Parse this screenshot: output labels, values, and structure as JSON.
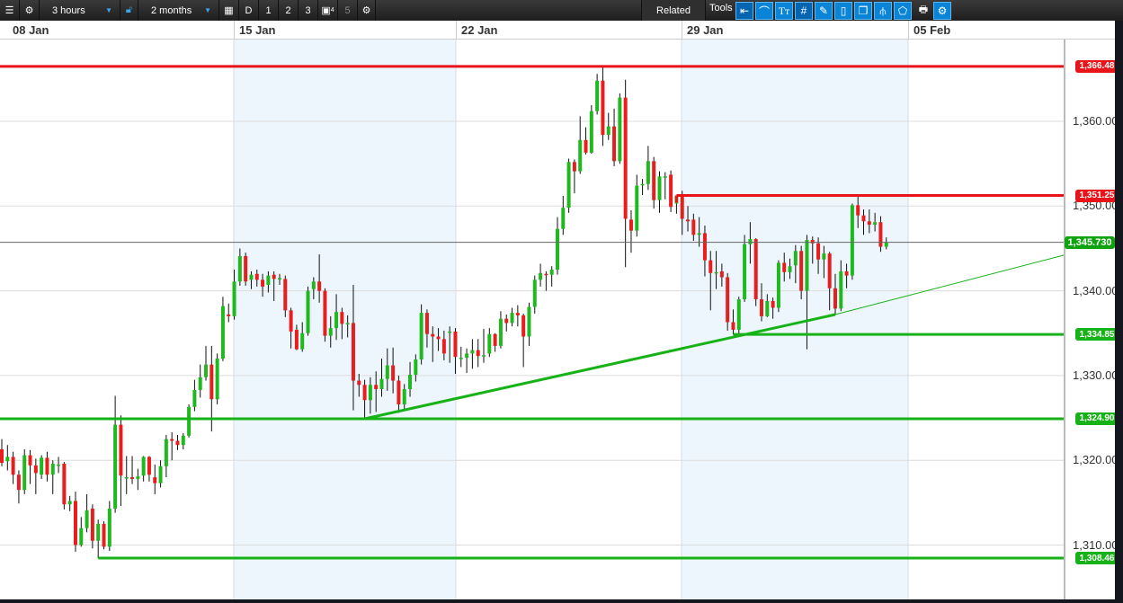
{
  "toolbar": {
    "interval": "3 hours",
    "range": "2 months",
    "d_label": "D",
    "btn1": "1",
    "btn2": "2",
    "btn3": "3",
    "btn4_badge": "4",
    "btn5": "5",
    "related": "Related",
    "tools": "Tools",
    "tool_icons": [
      "back-arrow-icon",
      "curve-icon",
      "text-icon",
      "grid-icon",
      "draw-icon",
      "candle-icon",
      "layers-icon",
      "indicator-icon",
      "label-icon"
    ],
    "print_icon": "print-icon",
    "settings_icon": "settings-icon"
  },
  "date_labels": [
    "08 Jan",
    "15 Jan",
    "22 Jan",
    "29 Jan",
    "05 Feb"
  ],
  "colors": {
    "up": "#1fb91f",
    "down": "#e81e1e",
    "resistance": "#e8141a",
    "support": "#17b217",
    "shade": "#eef6fd"
  },
  "chart_data": {
    "type": "candlestick",
    "interval": "3 hours",
    "x_tick_labels": [
      "08 Jan",
      "15 Jan",
      "22 Jan",
      "29 Jan",
      "05 Feb"
    ],
    "y_tick_labels": [
      "1,310.00",
      "1,320.00",
      "1,330.00",
      "1,340.00",
      "1,350.00",
      "1,360.00"
    ],
    "ylim": [
      1302.5,
      1367.5
    ],
    "grid": true,
    "last_price": "1,345.730",
    "candles_ohlc": [
      [
        1321.3,
        1322.5,
        1319.3,
        1319.7
      ],
      [
        1319.9,
        1321.8,
        1318.8,
        1320.4
      ],
      [
        1320.4,
        1321,
        1317.2,
        1318.3
      ],
      [
        1318.3,
        1318.8,
        1314.9,
        1316.5
      ],
      [
        1316.5,
        1321.3,
        1316,
        1320.6
      ],
      [
        1320.6,
        1321.2,
        1317.2,
        1319.4
      ],
      [
        1319.4,
        1320.2,
        1316,
        1318.5
      ],
      [
        1318.3,
        1320.6,
        1317.8,
        1320.3
      ],
      [
        1320.3,
        1321,
        1317.5,
        1318.3
      ],
      [
        1318.3,
        1320,
        1316,
        1319.6
      ],
      [
        1319.5,
        1320.4,
        1318.5,
        1319.5
      ],
      [
        1319.6,
        1319.8,
        1314.2,
        1314.8
      ],
      [
        1314.8,
        1315.8,
        1314,
        1315.2
      ],
      [
        1315.2,
        1316.3,
        1309.2,
        1310
      ],
      [
        1310,
        1313.3,
        1309.8,
        1312
      ],
      [
        1312,
        1316,
        1311.5,
        1314.1
      ],
      [
        1314.3,
        1314.8,
        1309.6,
        1310.5
      ],
      [
        1310.5,
        1313,
        1308.46,
        1312.5
      ],
      [
        1312.5,
        1312.8,
        1309.5,
        1309.8
      ],
      [
        1309.8,
        1315.2,
        1309.3,
        1314.3
      ],
      [
        1314.3,
        1327.6,
        1313.8,
        1324.2
      ],
      [
        1324.2,
        1325.3,
        1314.6,
        1318.2
      ],
      [
        1318,
        1320.5,
        1316,
        1318
      ],
      [
        1318,
        1320.5,
        1317.2,
        1317.8
      ],
      [
        1317.8,
        1319,
        1316.5,
        1318.1
      ],
      [
        1318.2,
        1320.5,
        1317.5,
        1320.4
      ],
      [
        1320.4,
        1320.5,
        1317.5,
        1318.3
      ],
      [
        1318,
        1319.5,
        1316,
        1317.3
      ],
      [
        1317.3,
        1320,
        1316.8,
        1319.3
      ],
      [
        1319.3,
        1323,
        1318,
        1322.5
      ],
      [
        1322.5,
        1323.3,
        1320,
        1322.3
      ],
      [
        1322.3,
        1323,
        1321.2,
        1321.8
      ],
      [
        1321.8,
        1323.2,
        1321.3,
        1322.9
      ],
      [
        1322.9,
        1326.6,
        1322.7,
        1326.3
      ],
      [
        1326.3,
        1329.5,
        1325.8,
        1328.3
      ],
      [
        1328.3,
        1331.3,
        1327.4,
        1329.8
      ],
      [
        1329.8,
        1333.5,
        1329.4,
        1331.3
      ],
      [
        1331.3,
        1333.5,
        1323.4,
        1327.2
      ],
      [
        1327.2,
        1332.6,
        1326.6,
        1332
      ],
      [
        1332,
        1339.3,
        1331.7,
        1338.2
      ],
      [
        1337.2,
        1338.5,
        1336.3,
        1337
      ],
      [
        1337,
        1342.5,
        1336.6,
        1341.1
      ],
      [
        1341.1,
        1345,
        1340.6,
        1344.1
      ],
      [
        1344.1,
        1344.5,
        1340.6,
        1341.1
      ],
      [
        1341.3,
        1342.3,
        1340.2,
        1341.9
      ],
      [
        1342,
        1342.5,
        1340.5,
        1341.3
      ],
      [
        1341.3,
        1342,
        1339.3,
        1340.5
      ],
      [
        1340.7,
        1342.3,
        1339.8,
        1341.8
      ],
      [
        1341.9,
        1342.3,
        1338.8,
        1341.4
      ],
      [
        1341.5,
        1342,
        1340.7,
        1341.5
      ],
      [
        1341.4,
        1341.8,
        1336.9,
        1337.7
      ],
      [
        1337.7,
        1338,
        1333.2,
        1335.2
      ],
      [
        1335.4,
        1336,
        1333,
        1333.1
      ],
      [
        1333.1,
        1336.3,
        1332.8,
        1335
      ],
      [
        1335,
        1340.5,
        1334.7,
        1340
      ],
      [
        1340.2,
        1341.6,
        1339,
        1341.1
      ],
      [
        1341.1,
        1344.3,
        1338.6,
        1340
      ],
      [
        1340,
        1340.3,
        1334,
        1334.7
      ],
      [
        1334.7,
        1337,
        1333.3,
        1335.6
      ],
      [
        1335.6,
        1339.6,
        1334.2,
        1337.5
      ],
      [
        1337.5,
        1338,
        1334.3,
        1336.1
      ],
      [
        1336.2,
        1337.1,
        1334.5,
        1336.2
      ],
      [
        1336.2,
        1340.7,
        1325.9,
        1329.4
      ],
      [
        1329.4,
        1330.2,
        1327.5,
        1328.9
      ],
      [
        1328.9,
        1329.5,
        1324.9,
        1327.1
      ],
      [
        1327.1,
        1329.8,
        1325.5,
        1328.9
      ],
      [
        1328.9,
        1330.5,
        1325.7,
        1328.4
      ],
      [
        1328.4,
        1332,
        1327.5,
        1329.6
      ],
      [
        1329.6,
        1333.2,
        1328.2,
        1331.2
      ],
      [
        1331.2,
        1333.3,
        1327.9,
        1329.4
      ],
      [
        1329.4,
        1330,
        1325.6,
        1326.6
      ],
      [
        1326.6,
        1329,
        1326,
        1328.4
      ],
      [
        1328.4,
        1331.6,
        1327.5,
        1330.1
      ],
      [
        1330.1,
        1332.5,
        1329.3,
        1331.9
      ],
      [
        1331.9,
        1338.4,
        1331.3,
        1337.4
      ],
      [
        1337.4,
        1337.8,
        1333.3,
        1334.9
      ],
      [
        1334.9,
        1335.8,
        1331.6,
        1334.6
      ],
      [
        1334.6,
        1335.6,
        1332.9,
        1334.3
      ],
      [
        1334.3,
        1335.3,
        1331.8,
        1332.6
      ],
      [
        1335.2,
        1335.8,
        1331.5,
        1335.2
      ],
      [
        1335.2,
        1335.6,
        1330.2,
        1332.2
      ],
      [
        1332.1,
        1333.4,
        1331,
        1332.1
      ],
      [
        1332.1,
        1333.2,
        1330.3,
        1332.6
      ],
      [
        1332.6,
        1334.3,
        1330.8,
        1333
      ],
      [
        1333,
        1334.3,
        1331,
        1332.3
      ],
      [
        1332.4,
        1335.5,
        1331.5,
        1332.4
      ],
      [
        1332.6,
        1335.6,
        1332.2,
        1334.9
      ],
      [
        1334.9,
        1335,
        1332.8,
        1333.5
      ],
      [
        1333.5,
        1337.6,
        1333.2,
        1336.7
      ],
      [
        1336.7,
        1337.2,
        1335.2,
        1336.2
      ],
      [
        1336.2,
        1338,
        1335.8,
        1337.4
      ],
      [
        1337.4,
        1338.3,
        1335.8,
        1337.1
      ],
      [
        1337.1,
        1337.3,
        1331,
        1334.6
      ],
      [
        1334.6,
        1338.6,
        1333.5,
        1338.1
      ],
      [
        1338.1,
        1341.8,
        1337.3,
        1341.3
      ],
      [
        1341.3,
        1343.2,
        1340.5,
        1342.1
      ],
      [
        1342,
        1342.3,
        1340,
        1341.9
      ],
      [
        1341.9,
        1342.9,
        1340.5,
        1342.5
      ],
      [
        1342.5,
        1348.7,
        1341.9,
        1347.3
      ],
      [
        1347.3,
        1351.2,
        1346.6,
        1349.8
      ],
      [
        1349.8,
        1355.6,
        1349.2,
        1355.2
      ],
      [
        1355.2,
        1355.5,
        1351.5,
        1354.1
      ],
      [
        1354.1,
        1360.6,
        1353.8,
        1357.8
      ],
      [
        1357.8,
        1359.3,
        1356.1,
        1356.3
      ],
      [
        1356.3,
        1361.9,
        1356.2,
        1361.2
      ],
      [
        1361.2,
        1365.6,
        1360.8,
        1364.8
      ],
      [
        1364.8,
        1366.48,
        1357.1,
        1358.4
      ],
      [
        1358.4,
        1361,
        1357.8,
        1359.4
      ],
      [
        1359.4,
        1361.5,
        1354.7,
        1355.3
      ],
      [
        1355.3,
        1363.3,
        1355,
        1362.8
      ],
      [
        1362.8,
        1364.9,
        1342.8,
        1348.5
      ],
      [
        1348.4,
        1349.5,
        1344.5,
        1347.1
      ],
      [
        1347.1,
        1353.7,
        1346.4,
        1352.4
      ],
      [
        1352.6,
        1353.2,
        1351.3,
        1352.6
      ],
      [
        1352.6,
        1357.1,
        1351.9,
        1355.3
      ],
      [
        1355.3,
        1355.8,
        1349.7,
        1350.7
      ],
      [
        1350.7,
        1354.1,
        1349.2,
        1353.5
      ],
      [
        1353.5,
        1354,
        1350.8,
        1353.5
      ],
      [
        1353.7,
        1354.2,
        1349.3,
        1349.9
      ],
      [
        1350.3,
        1351.25,
        1349.1,
        1351.2
      ],
      [
        1351.2,
        1351.8,
        1346.6,
        1348.5
      ],
      [
        1348.4,
        1350,
        1347,
        1348.2
      ],
      [
        1348.4,
        1349.1,
        1345.9,
        1346.6
      ],
      [
        1346.6,
        1348.7,
        1345.2,
        1346.8
      ],
      [
        1346.8,
        1347.7,
        1341.7,
        1343.6
      ],
      [
        1343.6,
        1344.7,
        1337.7,
        1342.1
      ],
      [
        1342.1,
        1344.7,
        1340.2,
        1342.2
      ],
      [
        1342.3,
        1343.2,
        1340.5,
        1341.6
      ],
      [
        1341.6,
        1342.1,
        1335.3,
        1336.3
      ],
      [
        1336.3,
        1337.8,
        1334.85,
        1335.4
      ],
      [
        1335.4,
        1339.3,
        1334.9,
        1339
      ],
      [
        1339,
        1346.6,
        1338.7,
        1345.5
      ],
      [
        1345.5,
        1348.1,
        1343.2,
        1346.1
      ],
      [
        1346.1,
        1346.2,
        1338.2,
        1339
      ],
      [
        1339,
        1340.9,
        1336.4,
        1337
      ],
      [
        1337,
        1339.6,
        1336.9,
        1338.8
      ],
      [
        1338.8,
        1339.2,
        1336.7,
        1338
      ],
      [
        1338,
        1343.6,
        1337.5,
        1343.3
      ],
      [
        1343.3,
        1344.5,
        1341.1,
        1342.2
      ],
      [
        1342.2,
        1343.8,
        1341.4,
        1342.9
      ],
      [
        1343,
        1345.4,
        1340.9,
        1344.7
      ],
      [
        1344.7,
        1345.3,
        1339,
        1340
      ],
      [
        1340,
        1346.6,
        1333.1,
        1346
      ],
      [
        1346,
        1346.4,
        1343.2,
        1345.6
      ],
      [
        1345.6,
        1346.3,
        1342,
        1343.7
      ],
      [
        1343.7,
        1345.3,
        1341.5,
        1344.4
      ],
      [
        1344.4,
        1344.6,
        1337.7,
        1340.3
      ],
      [
        1340.3,
        1342,
        1337.2,
        1337.9
      ],
      [
        1337.9,
        1343.6,
        1337.6,
        1342.3
      ],
      [
        1342.3,
        1343.2,
        1340.3,
        1341.8
      ],
      [
        1341.8,
        1350.3,
        1341.3,
        1350.1
      ],
      [
        1350.1,
        1351.1,
        1347.4,
        1348.9
      ],
      [
        1348.9,
        1349.6,
        1346.6,
        1348.2
      ],
      [
        1348.2,
        1349.6,
        1346.8,
        1347.8
      ],
      [
        1347.8,
        1349.2,
        1347,
        1348.1
      ],
      [
        1348.1,
        1348.8,
        1344.6,
        1345.2
      ],
      [
        1345.2,
        1346.3,
        1344.9,
        1345.73
      ]
    ],
    "horizontal_levels": [
      {
        "label": "1,366.48",
        "price": 1366.48,
        "kind": "resistance",
        "from_candle": 0
      },
      {
        "label": "1,351.25",
        "price": 1351.25,
        "kind": "resistance",
        "from_candle": 119
      },
      {
        "label": "1,334.85",
        "price": 1334.85,
        "kind": "support",
        "from_candle": 129
      },
      {
        "label": "1,324.90",
        "price": 1324.9,
        "kind": "support",
        "from_candle": 0
      },
      {
        "label": "1,308.46",
        "price": 1308.46,
        "kind": "support",
        "from_candle": 17
      }
    ],
    "trendline": {
      "from_candle": 64,
      "from_price": 1324.9,
      "to_candle": 147,
      "to_price": 1337.2,
      "extended_to_price": 1344.2
    }
  }
}
